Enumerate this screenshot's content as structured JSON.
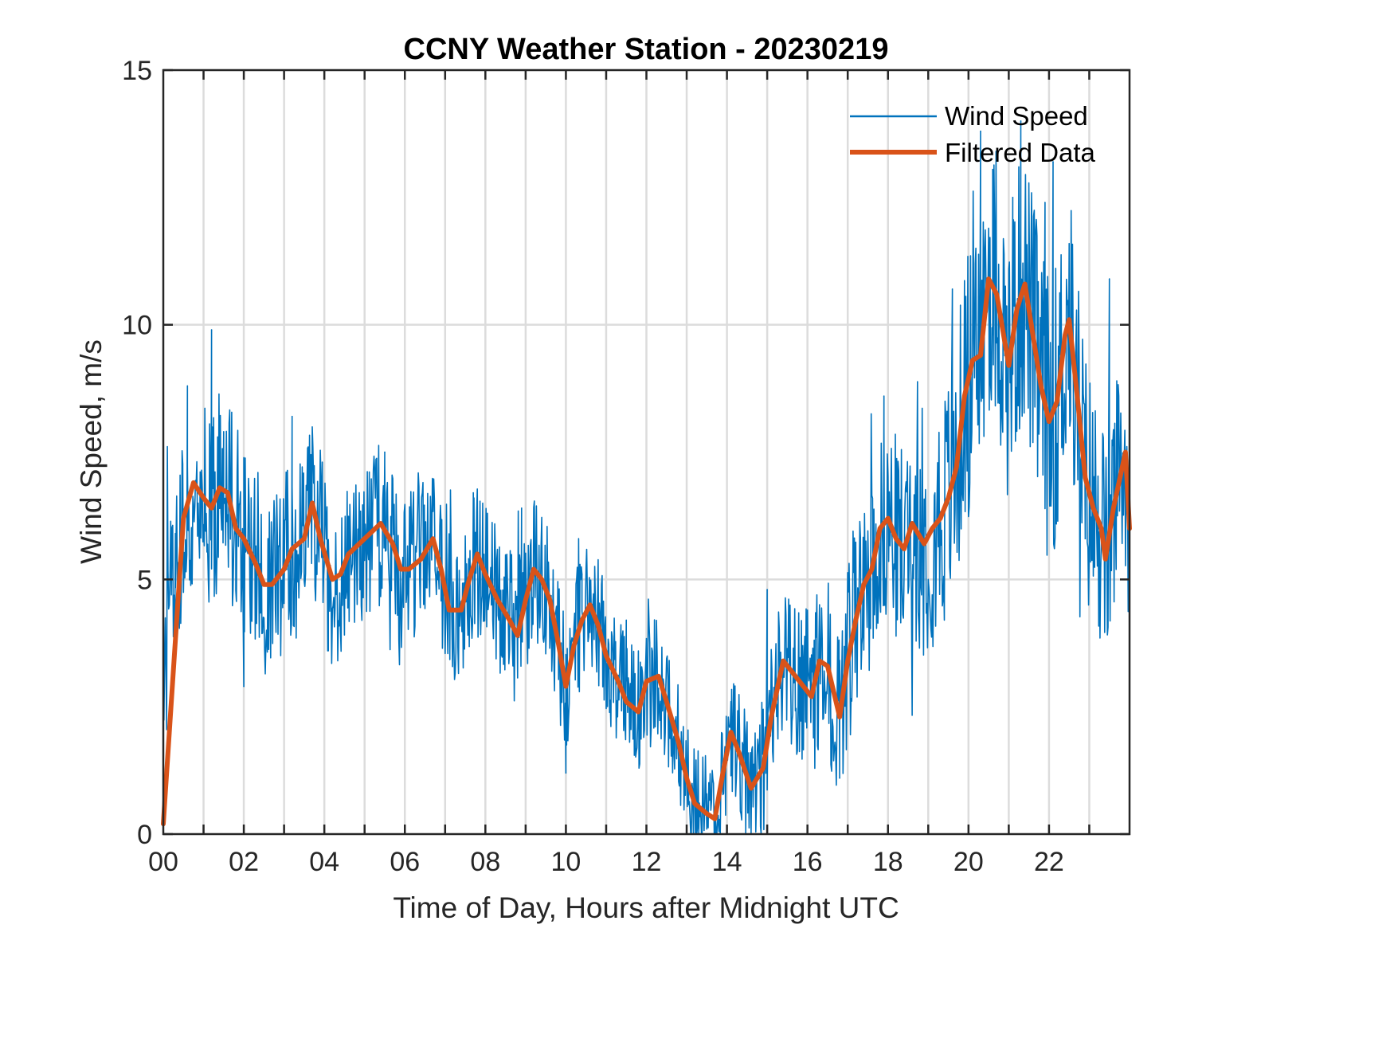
{
  "chart_data": {
    "type": "line",
    "title": "CCNY Weather Station - 20230219",
    "xlabel": "Time of Day, Hours after Midnight UTC",
    "ylabel": "Wind Speed, m/s",
    "xlim": [
      0,
      24
    ],
    "ylim": [
      0,
      15
    ],
    "xticks": [
      0,
      2,
      4,
      6,
      8,
      10,
      12,
      14,
      16,
      18,
      20,
      22
    ],
    "xtick_labels": [
      "00",
      "02",
      "04",
      "06",
      "08",
      "10",
      "12",
      "14",
      "16",
      "18",
      "20",
      "22"
    ],
    "x_minor_grid_step": 1,
    "yticks": [
      0,
      5,
      10,
      15
    ],
    "ytick_labels": [
      "0",
      "5",
      "10",
      "15"
    ],
    "grid": true,
    "legend": {
      "position": "top-right",
      "boxed": false
    },
    "series": [
      {
        "name": "Wind Speed",
        "color": "#0072BD",
        "style": "thin-noisy",
        "note": "high-frequency raw samples; envelope approximated as filtered value ± noise amplitude",
        "noise_amplitude": [
          [
            0,
            1.8
          ],
          [
            2,
            1.8
          ],
          [
            6,
            1.4
          ],
          [
            9,
            1.3
          ],
          [
            12,
            1.1
          ],
          [
            14,
            1.0
          ],
          [
            16,
            1.5
          ],
          [
            18,
            1.8
          ],
          [
            20,
            2.4
          ],
          [
            22,
            2.6
          ],
          [
            24,
            2.0
          ]
        ],
        "x": [
          0.0,
          0.3,
          0.6,
          1.2,
          1.5,
          1.8,
          2.0,
          3.2,
          3.6,
          4.1,
          5.5,
          6.9,
          7.7,
          8.9,
          10.0,
          10.4,
          11.5,
          13.1,
          13.5,
          14.1,
          15.0,
          16.8,
          17.9,
          19.6,
          20.3,
          20.6,
          21.1,
          21.3,
          21.9,
          22.1,
          22.9,
          23.5,
          24.0
        ],
        "values": [
          3.2,
          5.9,
          8.8,
          9.9,
          7.9,
          6.0,
          2.9,
          8.2,
          7.6,
          3.6,
          7.5,
          6.1,
          6.7,
          6.4,
          1.2,
          5.1,
          4.2,
          0.0,
          0.1,
          2.6,
          4.8,
          1.1,
          8.6,
          10.7,
          13.8,
          9.8,
          12.5,
          14.0,
          12.4,
          13.2,
          5.8,
          10.9,
          3.2
        ]
      },
      {
        "name": "Filtered Data",
        "color": "#D95319",
        "style": "thick",
        "x": [
          0.0,
          0.25,
          0.5,
          0.75,
          1.0,
          1.2,
          1.4,
          1.6,
          1.8,
          2.0,
          2.3,
          2.5,
          2.7,
          2.9,
          3.0,
          3.2,
          3.5,
          3.7,
          3.9,
          4.2,
          4.4,
          4.6,
          5.0,
          5.4,
          5.7,
          5.9,
          6.1,
          6.4,
          6.7,
          6.9,
          7.1,
          7.4,
          7.6,
          7.8,
          8.0,
          8.3,
          8.6,
          8.8,
          9.0,
          9.2,
          9.4,
          9.6,
          9.8,
          10.0,
          10.2,
          10.4,
          10.6,
          10.8,
          11.0,
          11.3,
          11.5,
          11.8,
          12.0,
          12.3,
          12.5,
          12.8,
          13.0,
          13.2,
          13.5,
          13.7,
          13.9,
          14.1,
          14.3,
          14.6,
          14.9,
          15.1,
          15.4,
          15.6,
          15.8,
          16.1,
          16.3,
          16.5,
          16.8,
          17.0,
          17.2,
          17.4,
          17.6,
          17.8,
          18.0,
          18.2,
          18.4,
          18.6,
          18.9,
          19.1,
          19.3,
          19.5,
          19.7,
          19.9,
          20.1,
          20.3,
          20.5,
          20.7,
          21.0,
          21.2,
          21.4,
          21.6,
          21.8,
          22.0,
          22.2,
          22.4,
          22.5,
          22.7,
          22.9,
          23.1,
          23.3,
          23.4,
          23.6,
          23.9,
          24.0
        ],
        "values": [
          0.2,
          3.2,
          6.2,
          6.9,
          6.6,
          6.4,
          6.8,
          6.7,
          6.0,
          5.8,
          5.3,
          4.9,
          4.9,
          5.1,
          5.2,
          5.6,
          5.8,
          6.5,
          5.8,
          5.0,
          5.1,
          5.5,
          5.8,
          6.1,
          5.7,
          5.2,
          5.2,
          5.4,
          5.8,
          5.2,
          4.4,
          4.4,
          5.0,
          5.5,
          5.1,
          4.6,
          4.2,
          3.9,
          4.6,
          5.2,
          5.0,
          4.6,
          3.8,
          2.9,
          3.7,
          4.2,
          4.5,
          4.1,
          3.5,
          3.0,
          2.6,
          2.4,
          3.0,
          3.1,
          2.6,
          1.8,
          1.1,
          0.6,
          0.4,
          0.3,
          1.2,
          2.0,
          1.6,
          0.9,
          1.3,
          2.3,
          3.4,
          3.2,
          3.0,
          2.7,
          3.4,
          3.3,
          2.3,
          3.4,
          4.2,
          4.9,
          5.2,
          6.0,
          6.2,
          5.8,
          5.6,
          6.1,
          5.7,
          6.0,
          6.2,
          6.6,
          7.2,
          8.6,
          9.3,
          9.4,
          10.9,
          10.6,
          9.2,
          10.3,
          10.8,
          9.8,
          8.8,
          8.1,
          8.5,
          9.8,
          10.1,
          8.6,
          7.0,
          6.4,
          6.0,
          5.4,
          6.4,
          7.5,
          6.0
        ]
      }
    ]
  }
}
